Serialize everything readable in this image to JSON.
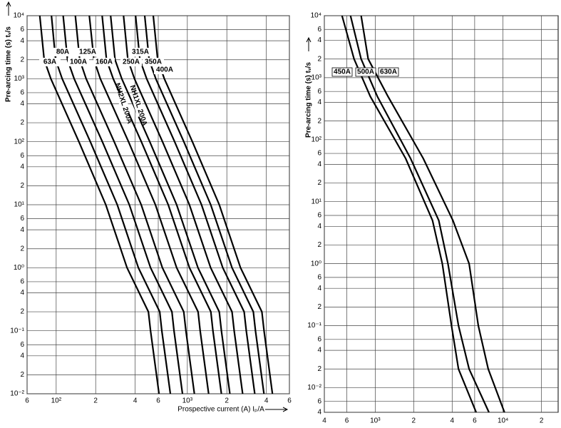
{
  "chart_data": [
    {
      "type": "line",
      "log_x": true,
      "log_y": true,
      "grid": true,
      "color": "#000000",
      "x_label": "Prospective current (A) Iₚ/A",
      "y_label": "Pre-arcing time (s) tᵥ/s",
      "xlim": [
        60,
        6000
      ],
      "ylim": [
        0.01,
        10000
      ],
      "xticks": [
        {
          "value": 60,
          "label": "6"
        },
        {
          "value": 100,
          "label": "10²"
        },
        {
          "value": 200,
          "label": "2"
        },
        {
          "value": 400,
          "label": "4"
        },
        {
          "value": 600,
          "label": "6"
        },
        {
          "value": 1000,
          "label": "10³"
        },
        {
          "value": 2000,
          "label": "2"
        },
        {
          "value": 4000,
          "label": "4"
        },
        {
          "value": 6000,
          "label": "6"
        }
      ],
      "yticks": [
        {
          "value": 10000,
          "label": "10⁴"
        },
        {
          "value": 6000,
          "label": "6"
        },
        {
          "value": 4000,
          "label": "4"
        },
        {
          "value": 2000,
          "label": "2"
        },
        {
          "value": 1000,
          "label": "10³"
        },
        {
          "value": 600,
          "label": "6"
        },
        {
          "value": 400,
          "label": "4"
        },
        {
          "value": 200,
          "label": "2"
        },
        {
          "value": 100,
          "label": "10²"
        },
        {
          "value": 60,
          "label": "6"
        },
        {
          "value": 40,
          "label": "4"
        },
        {
          "value": 20,
          "label": "2"
        },
        {
          "value": 10,
          "label": "10¹"
        },
        6,
        4,
        2,
        {
          "value": 1,
          "label": "10⁰"
        },
        {
          "value": 0.6,
          "label": "6"
        },
        {
          "value": 0.4,
          "label": "4"
        },
        {
          "value": 0.2,
          "label": "2"
        },
        {
          "value": 0.1,
          "label": "10⁻¹"
        },
        {
          "value": 0.06,
          "label": "6"
        },
        {
          "value": 0.04,
          "label": "4"
        },
        {
          "value": 0.02,
          "label": "2"
        },
        {
          "value": 0.01,
          "label": "10⁻²"
        }
      ],
      "series": [
        {
          "name": "63A",
          "x": [
            75,
            81,
            91,
            149,
            239,
            347,
            505,
            524,
            608
          ],
          "values": [
            10000,
            2000,
            1000,
            100,
            10,
            1,
            0.2,
            0.1,
            0.01
          ]
        },
        {
          "name": "80A",
          "x": [
            92,
            99,
            111,
            182,
            292,
            423,
            616,
            639,
            742
          ],
          "values": [
            10000,
            2000,
            1000,
            100,
            10,
            1,
            0.2,
            0.1,
            0.01
          ]
        },
        {
          "name": "100A",
          "x": [
            113,
            122,
            137,
            225,
            361,
            524,
            763,
            791,
            918
          ],
          "values": [
            10000,
            2000,
            1000,
            100,
            10,
            1,
            0.2,
            0.1,
            0.01
          ]
        },
        {
          "name": "125A",
          "x": [
            140,
            151,
            169,
            277,
            445,
            645,
            939,
            975,
            1131
          ],
          "values": [
            10000,
            2000,
            1000,
            100,
            10,
            1,
            0.2,
            0.1,
            0.01
          ]
        },
        {
          "name": "160A",
          "x": [
            179,
            194,
            217,
            356,
            571,
            829,
            1207,
            1252,
            1453
          ],
          "values": [
            10000,
            2000,
            1000,
            100,
            10,
            1,
            0.2,
            0.1,
            0.01
          ]
        },
        {
          "name": "NH2XL 200A",
          "x": [
            224,
            242,
            272,
            446,
            715,
            1038,
            1510,
            1567,
            1818
          ],
          "values": [
            10000,
            2000,
            1000,
            100,
            10,
            1,
            0.2,
            0.1,
            0.01
          ]
        },
        {
          "name": "NH1XL 200A",
          "x": [
            260,
            281,
            316,
            517,
            829,
            1204,
            1752,
            1818,
            2110
          ],
          "values": [
            10000,
            2000,
            1000,
            100,
            10,
            1,
            0.2,
            0.1,
            0.01
          ]
        },
        {
          "name": "250A",
          "x": [
            326,
            352,
            395,
            647,
            1037,
            1506,
            2192,
            2274,
            2639
          ],
          "values": [
            10000,
            2000,
            1000,
            100,
            10,
            1,
            0.2,
            0.1,
            0.01
          ]
        },
        {
          "name": "315A",
          "x": [
            403,
            435,
            489,
            800,
            1283,
            1863,
            2712,
            2814,
            3265
          ],
          "values": [
            10000,
            2000,
            1000,
            100,
            10,
            1,
            0.2,
            0.1,
            0.01
          ]
        },
        {
          "name": "350A",
          "x": [
            473,
            511,
            574,
            940,
            1508,
            2190,
            3187,
            3306,
            3836
          ],
          "values": [
            10000,
            2000,
            1000,
            100,
            10,
            1,
            0.2,
            0.1,
            0.01
          ]
        },
        {
          "name": "400A",
          "x": [
            550,
            594,
            667,
            1092,
            1752,
            2544,
            3702,
            3841,
            4457
          ],
          "values": [
            10000,
            2000,
            1000,
            100,
            10,
            1,
            0.2,
            0.1,
            0.01
          ]
        }
      ]
    },
    {
      "type": "line",
      "log_x": true,
      "log_y": true,
      "grid": true,
      "color": "#000000",
      "y_label": "Pre-arcing time (s) tᵥ/s",
      "xlim": [
        400,
        27000
      ],
      "ylim": [
        0.004,
        10000
      ],
      "xticks": [
        {
          "value": 400,
          "label": "4"
        },
        {
          "value": 600,
          "label": "6"
        },
        {
          "value": 1000,
          "label": "10³"
        },
        {
          "value": 2000,
          "label": "2"
        },
        {
          "value": 4000,
          "label": "4"
        },
        {
          "value": 6000,
          "label": "6"
        },
        {
          "value": 10000,
          "label": "10⁴"
        },
        {
          "value": 20000,
          "label": "2"
        }
      ],
      "yticks": [
        {
          "value": 10000,
          "label": "10⁴"
        },
        {
          "value": 6000,
          "label": "6"
        },
        {
          "value": 4000,
          "label": "4"
        },
        {
          "value": 2000,
          "label": "2"
        },
        {
          "value": 1000,
          "label": "10³"
        },
        {
          "value": 600,
          "label": "6"
        },
        {
          "value": 400,
          "label": "4"
        },
        {
          "value": 200,
          "label": "2"
        },
        {
          "value": 100,
          "label": "10²"
        },
        {
          "value": 60,
          "label": "6"
        },
        {
          "value": 40,
          "label": "4"
        },
        {
          "value": 20,
          "label": "2"
        },
        {
          "value": 10,
          "label": "10¹"
        },
        6,
        4,
        2,
        {
          "value": 1,
          "label": "10⁰"
        },
        {
          "value": 0.6,
          "label": "6"
        },
        {
          "value": 0.4,
          "label": "4"
        },
        {
          "value": 0.2,
          "label": "2"
        },
        {
          "value": 0.1,
          "label": "10⁻¹"
        },
        {
          "value": 0.06,
          "label": "6"
        },
        {
          "value": 0.04,
          "label": "4"
        },
        {
          "value": 0.02,
          "label": "2"
        },
        {
          "value": 0.01,
          "label": "10⁻²"
        },
        {
          "value": 0.006,
          "label": "6"
        },
        {
          "value": 0.004,
          "label": "4"
        }
      ],
      "series": [
        {
          "name": "450A",
          "x": [
            550,
            683,
            915,
            1729,
            2805,
            3350,
            3952,
            4487,
            6166
          ],
          "values": [
            10000,
            2000,
            500,
            50,
            5,
            1,
            0.1,
            0.02,
            0.004
          ]
        },
        {
          "name": "500A",
          "x": [
            641,
            776,
            1039,
            1889,
            3142,
            3707,
            4487,
            5431,
            7762
          ],
          "values": [
            10000,
            2000,
            500,
            50,
            5,
            1,
            0.1,
            0.02,
            0.004
          ]
        },
        {
          "name": "630A",
          "x": [
            776,
            881,
            1257,
            2375,
            4053,
            5431,
            6412,
            7656,
            10260
          ],
          "values": [
            10000,
            2000,
            500,
            50,
            5,
            1,
            0.1,
            0.02,
            0.004
          ]
        }
      ]
    }
  ]
}
